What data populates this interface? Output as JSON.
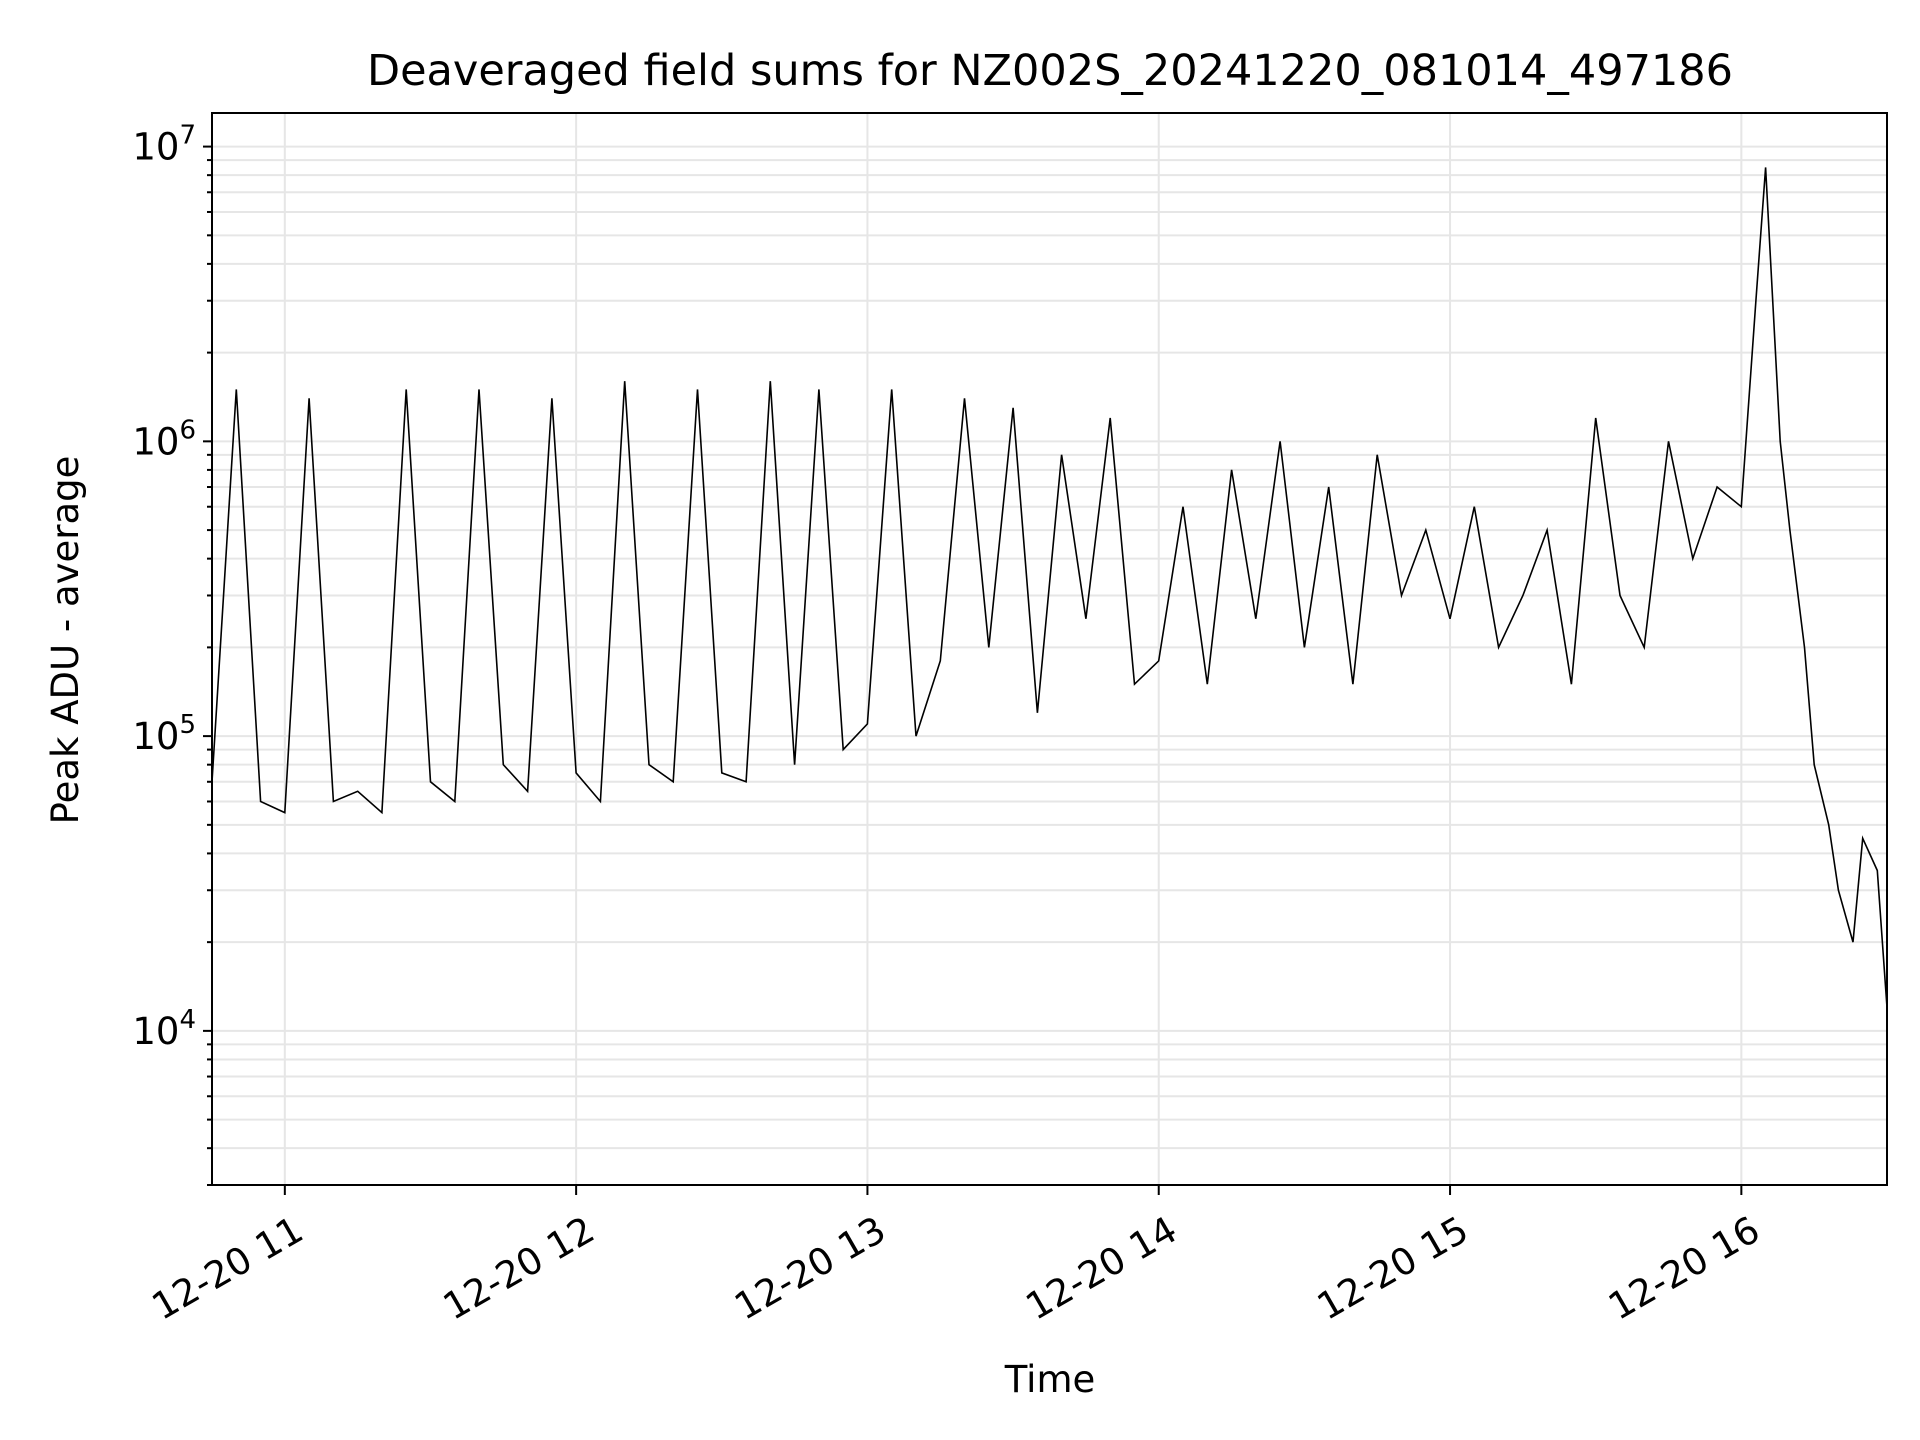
{
  "chart_data": {
    "type": "line",
    "title": "Deaveraged field sums for NZ002S_20241220_081014_497186",
    "xlabel": "Time",
    "ylabel": "Peak ADU - average",
    "y_scale": "log",
    "ylim": [
      3000,
      13000000
    ],
    "xlim": [
      "2024-12-20 10:45",
      "2024-12-20 16:30"
    ],
    "x_ticks": [
      "12-20 11",
      "12-20 12",
      "12-20 13",
      "12-20 14",
      "12-20 15",
      "12-20 16"
    ],
    "y_tick_bases": [
      "10",
      "10",
      "10",
      "10"
    ],
    "y_tick_exponents": [
      "4",
      "5",
      "6",
      "7"
    ],
    "grid": true,
    "line_color": "#000000",
    "grid_color": "#e6e6e6",
    "series": [
      {
        "x": [
          "2024-12-20 10:45",
          "2024-12-20 10:50",
          "2024-12-20 10:55",
          "2024-12-20 11:00",
          "2024-12-20 11:05",
          "2024-12-20 11:10",
          "2024-12-20 11:15",
          "2024-12-20 11:20",
          "2024-12-20 11:25",
          "2024-12-20 11:30",
          "2024-12-20 11:35",
          "2024-12-20 11:40",
          "2024-12-20 11:45",
          "2024-12-20 11:50",
          "2024-12-20 11:55",
          "2024-12-20 12:00",
          "2024-12-20 12:05",
          "2024-12-20 12:10",
          "2024-12-20 12:15",
          "2024-12-20 12:20",
          "2024-12-20 12:25",
          "2024-12-20 12:30",
          "2024-12-20 12:35",
          "2024-12-20 12:40",
          "2024-12-20 12:45",
          "2024-12-20 12:50",
          "2024-12-20 12:55",
          "2024-12-20 13:00",
          "2024-12-20 13:05",
          "2024-12-20 13:10",
          "2024-12-20 13:15",
          "2024-12-20 13:20",
          "2024-12-20 13:25",
          "2024-12-20 13:30",
          "2024-12-20 13:35",
          "2024-12-20 13:40",
          "2024-12-20 13:45",
          "2024-12-20 13:50",
          "2024-12-20 13:55",
          "2024-12-20 14:00",
          "2024-12-20 14:05",
          "2024-12-20 14:10",
          "2024-12-20 14:15",
          "2024-12-20 14:20",
          "2024-12-20 14:25",
          "2024-12-20 14:30",
          "2024-12-20 14:35",
          "2024-12-20 14:40",
          "2024-12-20 14:45",
          "2024-12-20 14:50",
          "2024-12-20 14:55",
          "2024-12-20 15:00",
          "2024-12-20 15:05",
          "2024-12-20 15:10",
          "2024-12-20 15:15",
          "2024-12-20 15:20",
          "2024-12-20 15:25",
          "2024-12-20 15:30",
          "2024-12-20 15:35",
          "2024-12-20 15:40",
          "2024-12-20 15:45",
          "2024-12-20 15:50",
          "2024-12-20 15:55",
          "2024-12-20 16:00",
          "2024-12-20 16:03",
          "2024-12-20 16:05",
          "2024-12-20 16:08",
          "2024-12-20 16:10",
          "2024-12-20 16:13",
          "2024-12-20 16:15",
          "2024-12-20 16:18",
          "2024-12-20 16:20",
          "2024-12-20 16:23",
          "2024-12-20 16:25",
          "2024-12-20 16:28",
          "2024-12-20 16:30"
        ],
        "y": [
          70000,
          1500000,
          60000,
          55000,
          1400000,
          60000,
          65000,
          55000,
          1500000,
          70000,
          60000,
          1500000,
          80000,
          65000,
          1400000,
          75000,
          60000,
          1600000,
          80000,
          70000,
          1500000,
          75000,
          70000,
          1600000,
          80000,
          1500000,
          90000,
          110000,
          1500000,
          100000,
          180000,
          1400000,
          200000,
          1300000,
          120000,
          900000,
          250000,
          1200000,
          150000,
          180000,
          600000,
          150000,
          800000,
          250000,
          1000000,
          200000,
          700000,
          150000,
          900000,
          300000,
          500000,
          250000,
          600000,
          200000,
          300000,
          500000,
          150000,
          1200000,
          300000,
          200000,
          1000000,
          400000,
          700000,
          600000,
          3000000,
          8500000,
          1000000,
          500000,
          200000,
          80000,
          50000,
          30000,
          20000,
          45000,
          35000,
          12000
        ]
      }
    ]
  }
}
